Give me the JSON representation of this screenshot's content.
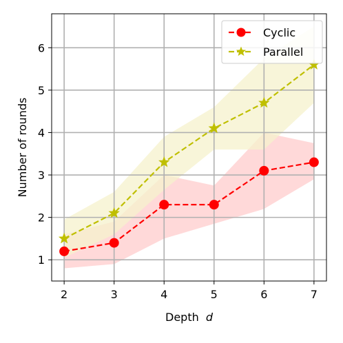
{
  "chart_data": {
    "type": "line",
    "xlabel": "Depth",
    "xlabel_var": "d",
    "ylabel": "Number of rounds",
    "xlim": [
      1.75,
      7.25
    ],
    "ylim": [
      0.5,
      6.8
    ],
    "x_ticks": [
      2,
      3,
      4,
      5,
      6,
      7
    ],
    "y_ticks": [
      1,
      2,
      3,
      4,
      5,
      6
    ],
    "grid": true,
    "legend_position": "top-right",
    "series": [
      {
        "name": "Cyclic",
        "color": "#ff0000",
        "band_color": "#ffcccc",
        "marker": "circle",
        "x": [
          2,
          3,
          4,
          5,
          6,
          7
        ],
        "y": [
          1.2,
          1.4,
          2.3,
          2.3,
          3.1,
          3.3
        ],
        "lower": [
          0.8,
          0.9,
          1.5,
          1.85,
          2.2,
          2.9
        ],
        "upper": [
          1.6,
          1.9,
          3.0,
          2.75,
          4.0,
          3.75
        ]
      },
      {
        "name": "Parallel",
        "color": "#bfbf00",
        "band_color": "#f5f2cc",
        "marker": "star",
        "x": [
          2,
          3,
          4,
          5,
          6,
          7
        ],
        "y": [
          1.5,
          2.1,
          3.3,
          4.1,
          4.7,
          5.6
        ],
        "lower": [
          1.05,
          1.6,
          2.65,
          3.6,
          3.6,
          4.7
        ],
        "upper": [
          1.95,
          2.6,
          3.9,
          4.6,
          5.75,
          6.5
        ]
      }
    ]
  }
}
